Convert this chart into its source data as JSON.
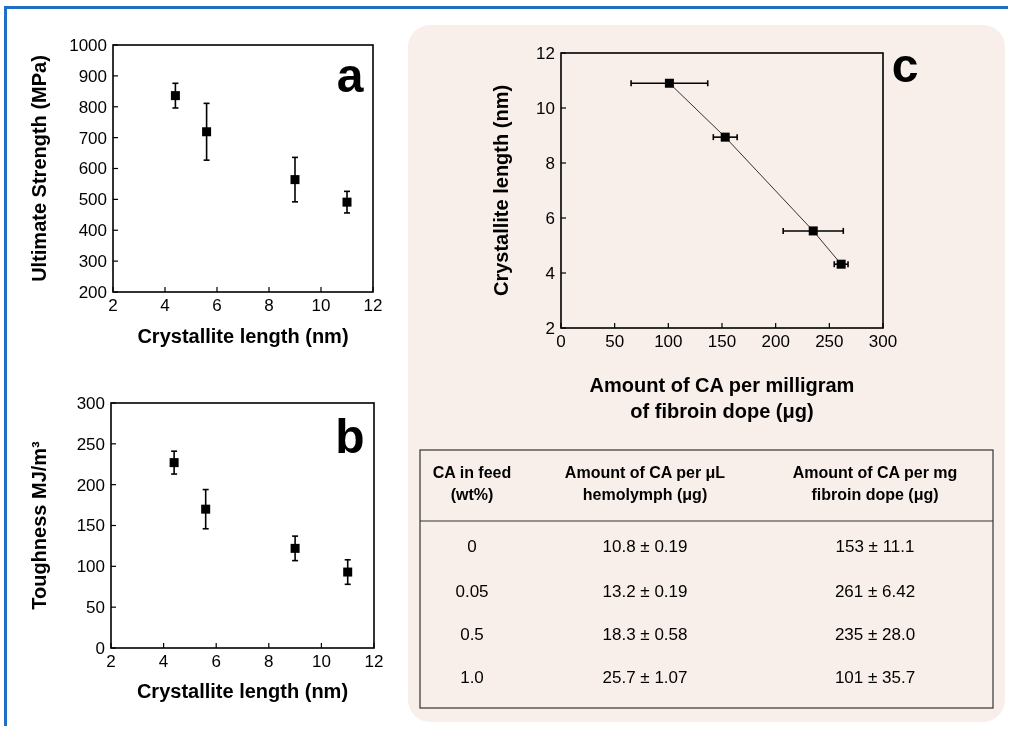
{
  "chart_data": [
    {
      "type": "scatter",
      "title": "a",
      "xlabel": "Crystallite length (nm)",
      "ylabel": "Ultimate Strength (MPa)",
      "xlim": [
        2,
        12
      ],
      "xticks": [
        2,
        4,
        6,
        8,
        10,
        12
      ],
      "ylim": [
        200,
        1000
      ],
      "yticks": [
        200,
        300,
        400,
        500,
        600,
        700,
        800,
        900,
        1000
      ],
      "marker": "square",
      "series": [
        {
          "color": "#000000",
          "x": [
            4.4,
            5.6,
            9,
            11
          ],
          "values": [
            836,
            719,
            564,
            491
          ],
          "errors": [
            40,
            92,
            72,
            35
          ]
        }
      ]
    },
    {
      "type": "scatter",
      "title": "b",
      "xlabel": "Crystallite length (nm)",
      "ylabel": "Toughness MJ/m³",
      "xlim": [
        2,
        12
      ],
      "xticks": [
        2,
        4,
        6,
        8,
        10,
        12
      ],
      "ylim": [
        0,
        300
      ],
      "yticks": [
        0,
        50,
        100,
        150,
        200,
        250,
        300
      ],
      "marker": "square",
      "series": [
        {
          "color": "#000000",
          "x": [
            4.4,
            5.6,
            9,
            11
          ],
          "values": [
            227,
            170,
            122,
            93
          ],
          "errors": [
            14,
            24,
            15,
            15
          ]
        }
      ]
    },
    {
      "type": "line",
      "title": "c",
      "xlabel": "Amount of CA per milligram of fibroin dope (μg)",
      "ylabel": "Crystallite length (nm)",
      "xlim": [
        0,
        300
      ],
      "xticks": [
        0,
        50,
        100,
        150,
        200,
        250,
        300
      ],
      "ylim": [
        2,
        12
      ],
      "yticks": [
        2,
        4,
        6,
        8,
        10,
        12
      ],
      "marker": "square",
      "series": [
        {
          "color": "#000000",
          "x": [
            101,
            153,
            235,
            261
          ],
          "values": [
            10.9,
            8.94,
            5.53,
            4.32
          ],
          "xerrors": [
            35.7,
            11.1,
            28.0,
            6.42
          ]
        }
      ],
      "annotations": [
        "CA in feed (wt%)",
        "Amount of CA per μL hemolymph (μg)",
        "Amount of CA per mg fibroin dope (μg)",
        "0",
        "10.8 ± 0.19",
        "153 ± 11.1",
        "0.05",
        "13.2 ± 0.19",
        "261 ± 6.42",
        "0.5",
        "18.3 ± 0.58",
        "235 ± 28.0",
        "1.0",
        "25.7 ± 1.07",
        "101 ± 35.7"
      ]
    }
  ]
}
